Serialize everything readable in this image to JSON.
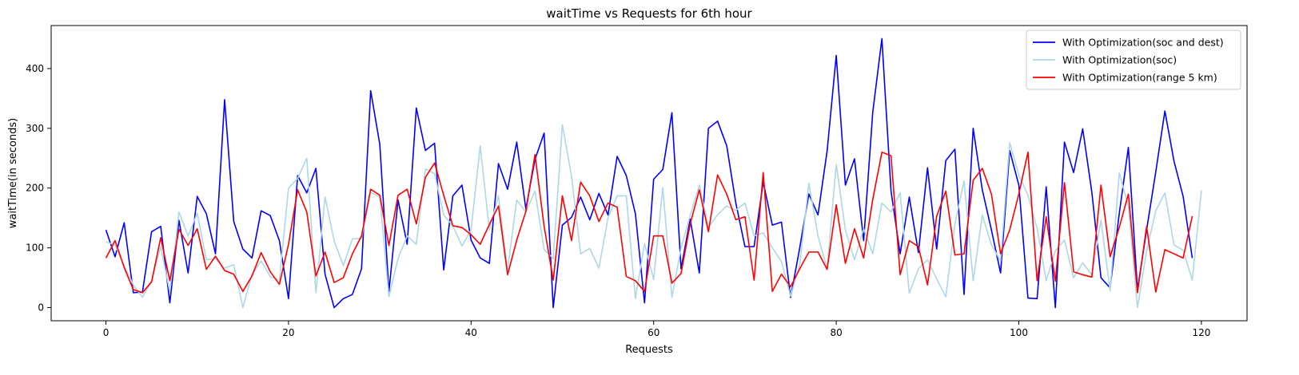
{
  "chart_data": {
    "type": "line",
    "title": "waitTime vs Requests for 6th hour",
    "xlabel": "Requests",
    "ylabel": "waitTime(in seconds)",
    "xlim": [
      -6,
      125
    ],
    "ylim": [
      -22,
      472
    ],
    "xticks": [
      0,
      20,
      40,
      60,
      80,
      100,
      120
    ],
    "yticks": [
      0,
      100,
      200,
      300,
      400
    ],
    "grid": false,
    "legend_position": "top-right",
    "series": [
      {
        "name": "With Optimization(soc and dest)",
        "color": "#0000ff",
        "values": [
          130,
          85,
          142,
          25,
          26,
          127,
          136,
          8,
          146,
          58,
          186,
          157,
          90,
          348,
          144,
          98,
          83,
          162,
          154,
          112,
          15,
          221,
          192,
          233,
          56,
          0,
          15,
          22,
          65,
          363,
          273,
          27,
          180,
          106,
          334,
          263,
          275,
          63,
          187,
          205,
          113,
          83,
          74,
          241,
          198,
          277,
          165,
          248,
          292,
          0,
          138,
          151,
          185,
          147,
          191,
          155,
          253,
          221,
          157,
          8,
          215,
          231,
          326,
          65,
          148,
          58,
          300,
          312,
          271,
          175,
          102,
          102,
          210,
          138,
          143,
          17,
          100,
          190,
          155,
          262,
          422,
          205,
          249,
          112,
          327,
          450,
          195,
          90,
          185,
          92,
          234,
          98,
          246,
          265,
          22,
          300,
          197,
          130,
          58,
          263,
          205,
          16,
          15,
          202,
          0,
          277,
          226,
          299,
          193,
          50,
          33,
          157,
          268,
          30,
          130,
          227,
          329,
          245,
          186,
          83
        ]
      },
      {
        "name": "With Optimization(soc)",
        "color": "#add8e6",
        "values": [
          110,
          105,
          70,
          38,
          17,
          45,
          102,
          26,
          160,
          120,
          158,
          80,
          82,
          66,
          72,
          0,
          56,
          78,
          52,
          46,
          200,
          216,
          250,
          25,
          185,
          112,
          70,
          115,
          116,
          193,
          185,
          18,
          82,
          120,
          106,
          232,
          224,
          155,
          137,
          103,
          130,
          271,
          130,
          187,
          64,
          180,
          160,
          195,
          97,
          82,
          306,
          220,
          90,
          99,
          66,
          150,
          187,
          187,
          15,
          107,
          47,
          201,
          17,
          100,
          154,
          205,
          135,
          155,
          170,
          163,
          175,
          120,
          125,
          100,
          77,
          19,
          72,
          208,
          120,
          65,
          240,
          130,
          80,
          132,
          90,
          175,
          160,
          192,
          24,
          65,
          80,
          48,
          18,
          140,
          212,
          45,
          155,
          105,
          78,
          276,
          222,
          188,
          133,
          45,
          95,
          113,
          50,
          75,
          55,
          146,
          28,
          225,
          170,
          0,
          95,
          162,
          192,
          105,
          96,
          46,
          196
        ]
      },
      {
        "name": "With Optimization(range 5 km)",
        "color": "#ff0000",
        "values": [
          83,
          112,
          67,
          30,
          25,
          43,
          117,
          45,
          131,
          104,
          132,
          64,
          86,
          62,
          56,
          27,
          53,
          92,
          60,
          39,
          106,
          197,
          160,
          53,
          93,
          42,
          50,
          90,
          120,
          198,
          188,
          104,
          188,
          198,
          140,
          218,
          242,
          188,
          137,
          134,
          122,
          106,
          139,
          170,
          55,
          113,
          161,
          256,
          136,
          46,
          187,
          112,
          210,
          187,
          144,
          175,
          168,
          52,
          45,
          27,
          120,
          120,
          41,
          57,
          140,
          197,
          127,
          222,
          190,
          147,
          152,
          46,
          226,
          27,
          56,
          35,
          65,
          93,
          93,
          64,
          172,
          74,
          132,
          83,
          181,
          260,
          254,
          55,
          112,
          102,
          38,
          153,
          195,
          88,
          90,
          213,
          233,
          190,
          90,
          130,
          190,
          260,
          45,
          152,
          44,
          209,
          60,
          55,
          51,
          205,
          85,
          134,
          190,
          25,
          136,
          26,
          97,
          90,
          83,
          153
        ]
      }
    ]
  }
}
